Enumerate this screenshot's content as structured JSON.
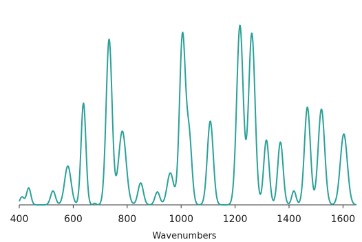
{
  "chart_data": {
    "type": "line",
    "title": "",
    "xlabel": "Wavenumbers",
    "ylabel": "",
    "xlim": [
      400,
      1650
    ],
    "ylim": [
      0,
      1
    ],
    "grid": false,
    "x_ticks": [
      400,
      600,
      800,
      1000,
      1200,
      1400,
      1600
    ],
    "x_tick_labels": [
      "400",
      "600",
      "800",
      "1000",
      "1200",
      "1400",
      "1600"
    ],
    "series": [
      {
        "color": "#2aa198",
        "peaks": [
          {
            "x": 410,
            "y": 0.04,
            "w": 8
          },
          {
            "x": 435,
            "y": 0.085,
            "w": 8
          },
          {
            "x": 525,
            "y": 0.07,
            "w": 9
          },
          {
            "x": 580,
            "y": 0.195,
            "w": 12
          },
          {
            "x": 638,
            "y": 0.51,
            "w": 9
          },
          {
            "x": 680,
            "y": 0.008,
            "w": 5
          },
          {
            "x": 733,
            "y": 0.83,
            "w": 11
          },
          {
            "x": 782,
            "y": 0.37,
            "w": 14
          },
          {
            "x": 850,
            "y": 0.11,
            "w": 10
          },
          {
            "x": 912,
            "y": 0.065,
            "w": 9
          },
          {
            "x": 960,
            "y": 0.16,
            "w": 12
          },
          {
            "x": 1005,
            "y": 0.85,
            "w": 11
          },
          {
            "x": 1030,
            "y": 0.33,
            "w": 10
          },
          {
            "x": 1108,
            "y": 0.42,
            "w": 11
          },
          {
            "x": 1218,
            "y": 0.9,
            "w": 12
          },
          {
            "x": 1262,
            "y": 0.86,
            "w": 12
          },
          {
            "x": 1316,
            "y": 0.325,
            "w": 10
          },
          {
            "x": 1368,
            "y": 0.315,
            "w": 10
          },
          {
            "x": 1418,
            "y": 0.07,
            "w": 8
          },
          {
            "x": 1468,
            "y": 0.49,
            "w": 11
          },
          {
            "x": 1520,
            "y": 0.48,
            "w": 12
          },
          {
            "x": 1603,
            "y": 0.355,
            "w": 13
          }
        ]
      }
    ]
  }
}
